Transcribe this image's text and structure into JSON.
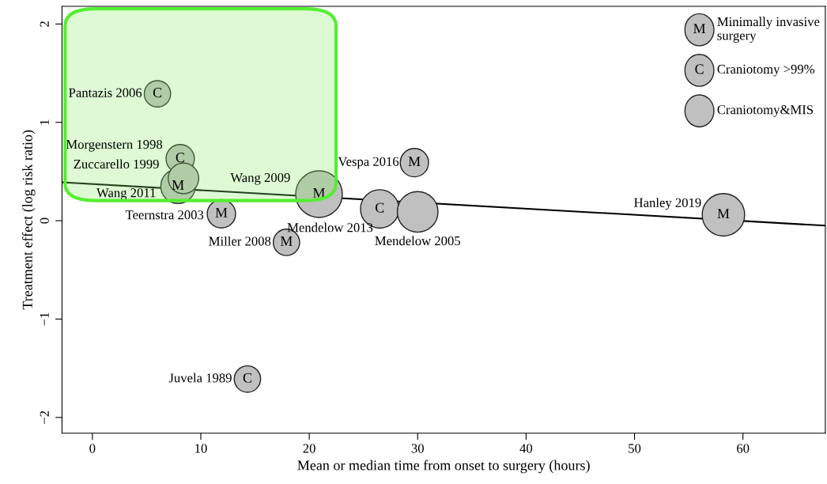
{
  "chart_data": {
    "type": "bubble",
    "xlabel": "Mean or median time from onset to surgery (hours)",
    "ylabel": "Treatment effect (log risk ratio)",
    "xlim": [
      -2.8,
      67.6
    ],
    "ylim": [
      -2.16,
      2.18
    ],
    "xticks": [
      0,
      10,
      20,
      30,
      40,
      50,
      60
    ],
    "yticks": [
      {
        "value": -2,
        "label": "−2"
      },
      {
        "value": -1,
        "label": "−1"
      },
      0,
      1,
      2
    ],
    "grid": false,
    "marker": "circle",
    "series": [
      {
        "color": "#c0c0c0",
        "x": [
          7.9,
          11.9,
          20.9,
          29.7,
          58.2,
          17.9,
          6.0,
          8.1,
          26.5,
          14.3,
          8.4,
          30.0
        ],
        "values": [
          0.35,
          0.07,
          0.27,
          0.59,
          0.06,
          -0.22,
          1.29,
          0.63,
          0.12,
          -1.61,
          0.43,
          0.09
        ],
        "sizes": [
          0.55,
          0.37,
          1,
          0.37,
          0.83,
          0.32,
          0.32,
          0.37,
          0.68,
          0.32,
          0.43,
          0.76
        ],
        "value_labels": [
          "M",
          "M",
          "M",
          "M",
          "M",
          "M",
          "C",
          "C",
          "C",
          "C",
          null,
          null
        ]
      },
      {
        "type": "line",
        "color": "#000000",
        "x": [
          -2.8,
          67.6
        ],
        "values": [
          0.39,
          -0.05
        ],
        "marker": "none"
      }
    ],
    "annotations": [
      {
        "text": "Pantazis 2006",
        "x": 6.0,
        "y": 1.29
      },
      {
        "text": "Morgenstern 1998",
        "x": 8.1,
        "y": 0.63
      },
      {
        "text": "Zuccarello 1999",
        "x": 8.4,
        "y": 0.43
      },
      {
        "text": "Wang 2011",
        "x": 7.9,
        "y": 0.35
      },
      {
        "text": "Teernstra 2003",
        "x": 11.9,
        "y": 0.07
      },
      {
        "text": "Wang 2009",
        "x": 20.9,
        "y": 0.27
      },
      {
        "text": "Vespa 2016",
        "x": 29.7,
        "y": 0.59
      },
      {
        "text": "Mendelow 2013",
        "x": 26.5,
        "y": 0.12
      },
      {
        "text": "Mendelow 2005",
        "x": 30.0,
        "y": 0.09
      },
      {
        "text": "Hanley 2019",
        "x": 58.2,
        "y": 0.06
      },
      {
        "text": "Miller 2008",
        "x": 17.9,
        "y": -0.22
      },
      {
        "text": "Juvela 1989",
        "x": 14.3,
        "y": -1.61
      },
      "M",
      "Minimally invasive surgery",
      "C",
      "Craniotomy >99%",
      "Craniotomy&MIS"
    ]
  }
}
